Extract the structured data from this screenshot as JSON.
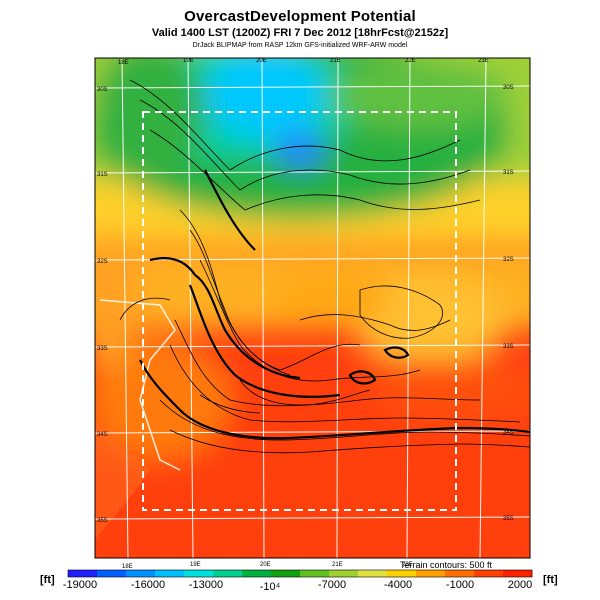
{
  "title": "OvercastDevelopment Potential",
  "subtitle": "Valid 1400 LST (1200Z) FRI 7 Dec 2012 [18hrFcst@2152z]",
  "credit": "DrJack BLIPMAP from RASP 12km GFS-initialized WRF-ARW model",
  "longitude_top": [
    "18E",
    "19E",
    "20E",
    "21E",
    "22E",
    "23E"
  ],
  "longitude_bottom": [
    "18E",
    "19E",
    "20E",
    "21E",
    "22E"
  ],
  "latitude_left": [
    "30S",
    "31S",
    "32S",
    "33S",
    "34S",
    "35S"
  ],
  "latitude_right": [
    "30S",
    "31S",
    "32S",
    "33S",
    "34S",
    "35S"
  ],
  "colorbar": {
    "unit_left": "[ft]",
    "unit_right": "[ft]",
    "ticks": [
      "-19000",
      "-16000",
      "-13000",
      "-10⁴",
      "-7000",
      "-4000",
      "-1000",
      "2000"
    ],
    "min": -19000,
    "max": 2000,
    "colors": [
      "#2020ff",
      "#0060ff",
      "#0090ff",
      "#00c0ff",
      "#00e0e0",
      "#00d090",
      "#00b040",
      "#10a010",
      "#60c020",
      "#a0d030",
      "#e0e040",
      "#ffd000",
      "#ffa000",
      "#ff7000",
      "#ff4000",
      "#ff2000"
    ]
  },
  "terrain_note": "Terrain contours: 500 ft"
}
